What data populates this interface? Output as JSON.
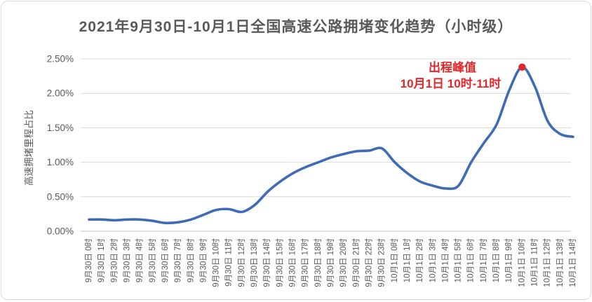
{
  "page": {
    "background": "#FFFFFF"
  },
  "colors": {
    "grid": "#D9D9D9",
    "baseline": "#C9C9C9",
    "axis_text": "#595959",
    "title_text": "#595959",
    "line": "#3F6BB5",
    "peak": "#E2272B",
    "card_border": "#DCDCDC"
  },
  "chart_data": {
    "type": "line",
    "title": "2021年9月30日-10月1日全国高速公路拥堵变化趋势（小时级）",
    "ylabel": "高速拥堵里程占比",
    "xlabel": "",
    "ylim": [
      0,
      2.5
    ],
    "y_tick_labels": [
      "0.00%",
      "0.50%",
      "1.00%",
      "1.50%",
      "2.00%",
      "2.50%"
    ],
    "grid": true,
    "legend": false,
    "categories": [
      "9月30日 0时",
      "9月30日 1时",
      "9月30日 2时",
      "9月30日 3时",
      "9月30日 4时",
      "9月30日 5时",
      "9月30日 6时",
      "9月30日 7时",
      "9月30日 8时",
      "9月30日 9时",
      "9月30日 10时",
      "9月30日 11时",
      "9月30日 12时",
      "9月30日 13时",
      "9月30日 14时",
      "9月30日 15时",
      "9月30日 16时",
      "9月30日 17时",
      "9月30日 18时",
      "9月30日 19时",
      "9月30日 20时",
      "9月30日 21时",
      "9月30日 22时",
      "9月30日 23时",
      "10月1日 0时",
      "10月1日 1时",
      "10月1日 2时",
      "10月1日 3时",
      "10月1日 4时",
      "10月1日 5时",
      "10月1日 6时",
      "10月1日 7时",
      "10月1日 8时",
      "10月1日 9时",
      "10月1日 10时",
      "10月1日 11时",
      "10月1日 12时",
      "10月1日 13时",
      "10月1日 14时"
    ],
    "series": [
      {
        "name": "高速拥堵里程占比",
        "color": "#3F6BB5",
        "values": [
          0.17,
          0.17,
          0.16,
          0.17,
          0.17,
          0.15,
          0.12,
          0.13,
          0.17,
          0.24,
          0.31,
          0.32,
          0.28,
          0.38,
          0.57,
          0.72,
          0.84,
          0.93,
          1.0,
          1.07,
          1.12,
          1.16,
          1.17,
          1.2,
          1.0,
          0.84,
          0.72,
          0.66,
          0.62,
          0.66,
          1.0,
          1.28,
          1.55,
          2.05,
          2.38,
          2.1,
          1.6,
          1.41,
          1.37
        ]
      }
    ],
    "annotation": {
      "title": "出程峰值",
      "subtitle": "10月1日 10时-11时",
      "color": "#E2272B",
      "point_index": 34,
      "point_value": 2.38,
      "point_category": "10月1日 10时"
    }
  }
}
